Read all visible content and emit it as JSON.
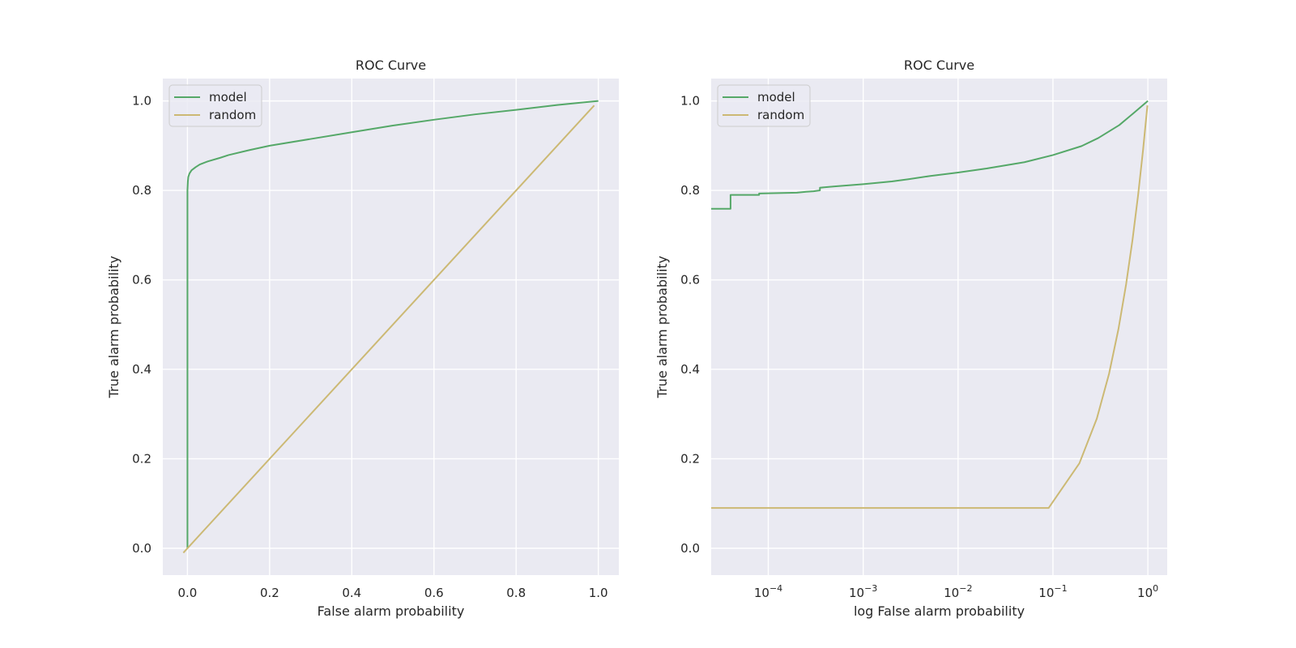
{
  "colors": {
    "model": "#55a868",
    "random": "#ccb974",
    "panel": "#eaeaf2",
    "grid": "#ffffff",
    "text": "#262626"
  },
  "chart_data": [
    {
      "type": "line",
      "title": "ROC Curve",
      "xlabel": "False alarm probability",
      "ylabel": "True alarm probability",
      "xscale": "linear",
      "xlim": [
        -0.06,
        1.05
      ],
      "ylim": [
        -0.06,
        1.05
      ],
      "xticks": [
        0.0,
        0.2,
        0.4,
        0.6,
        0.8,
        1.0
      ],
      "xtick_labels": [
        "0.0",
        "0.2",
        "0.4",
        "0.6",
        "0.8",
        "1.0"
      ],
      "yticks": [
        0.0,
        0.2,
        0.4,
        0.6,
        0.8,
        1.0
      ],
      "ytick_labels": [
        "0.0",
        "0.2",
        "0.4",
        "0.6",
        "0.8",
        "1.0"
      ],
      "legend_position": "top-left",
      "series": [
        {
          "name": "model",
          "color_key": "model",
          "x": [
            0.0,
            0.0,
            0.001,
            0.002,
            0.005,
            0.01,
            0.02,
            0.03,
            0.05,
            0.08,
            0.1,
            0.15,
            0.2,
            0.3,
            0.4,
            0.5,
            0.6,
            0.7,
            0.8,
            0.9,
            1.0
          ],
          "y": [
            0.0,
            0.8,
            0.82,
            0.83,
            0.838,
            0.845,
            0.852,
            0.858,
            0.865,
            0.873,
            0.879,
            0.89,
            0.9,
            0.915,
            0.93,
            0.945,
            0.958,
            0.97,
            0.98,
            0.991,
            1.0
          ]
        },
        {
          "name": "random",
          "color_key": "random",
          "x": [
            -0.01,
            0.99
          ],
          "y": [
            -0.01,
            0.99
          ]
        }
      ]
    },
    {
      "type": "line",
      "title": "ROC Curve",
      "xlabel": "log False alarm probability",
      "ylabel": "True alarm probability",
      "xscale": "log",
      "xlim": [
        2.5e-05,
        1.6
      ],
      "ylim": [
        -0.06,
        1.05
      ],
      "xticks": [
        0.0001,
        0.001,
        0.01,
        0.1,
        1
      ],
      "xtick_labels": [
        {
          "base": "10",
          "exp": "−4"
        },
        {
          "base": "10",
          "exp": "−3"
        },
        {
          "base": "10",
          "exp": "−2"
        },
        {
          "base": "10",
          "exp": "−1"
        },
        {
          "base": "10",
          "exp": "0"
        }
      ],
      "yticks": [
        0.0,
        0.2,
        0.4,
        0.6,
        0.8,
        1.0
      ],
      "ytick_labels": [
        "0.0",
        "0.2",
        "0.4",
        "0.6",
        "0.8",
        "1.0"
      ],
      "legend_position": "top-left",
      "series": [
        {
          "name": "model",
          "color_key": "model",
          "step": true,
          "x": [
            2.5e-05,
            4e-05,
            4e-05,
            8e-05,
            8e-05,
            0.0002,
            0.00025,
            0.0003,
            0.00035,
            0.00035,
            0.0005,
            0.001,
            0.002,
            0.003,
            0.005,
            0.01,
            0.02,
            0.05,
            0.1,
            0.2,
            0.3,
            0.5,
            0.7,
            1.0
          ],
          "y": [
            0.759,
            0.759,
            0.79,
            0.79,
            0.793,
            0.795,
            0.797,
            0.798,
            0.8,
            0.806,
            0.809,
            0.814,
            0.82,
            0.825,
            0.832,
            0.84,
            0.849,
            0.863,
            0.879,
            0.899,
            0.917,
            0.946,
            0.972,
            1.0
          ]
        },
        {
          "name": "random",
          "color_key": "random",
          "x": [
            2.5e-05,
            0.09,
            0.19,
            0.29,
            0.39,
            0.49,
            0.59,
            0.69,
            0.79,
            0.89,
            0.99
          ],
          "y": [
            0.09,
            0.09,
            0.19,
            0.29,
            0.39,
            0.49,
            0.59,
            0.69,
            0.79,
            0.89,
            0.99
          ]
        }
      ]
    }
  ]
}
